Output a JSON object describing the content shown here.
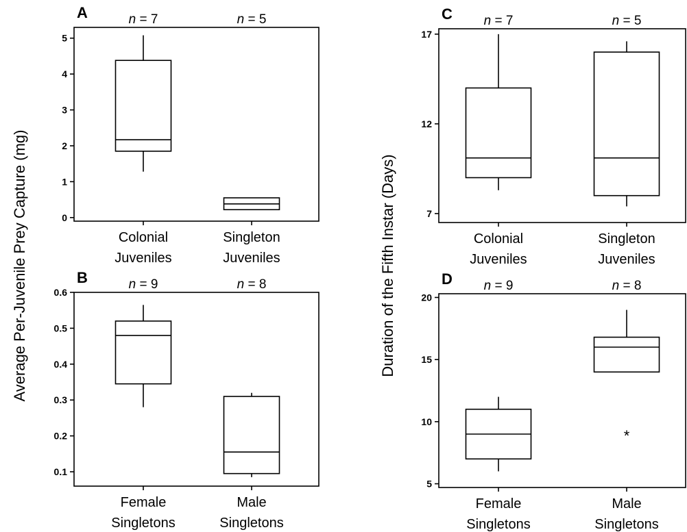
{
  "ylabel_left": "Average Per-Juvenile Prey Capture (mg)",
  "ylabel_right": "Duration of the Fifth Instar (Days)",
  "chart_data": [
    {
      "panel": "A",
      "type": "boxplot",
      "ylim": [
        -0.1,
        5.3
      ],
      "yticks": [
        0,
        1,
        2,
        3,
        4,
        5
      ],
      "categories": [
        {
          "line1": "Colonial",
          "line2": "Juveniles",
          "n": "7",
          "min": 1.28,
          "q1": 1.85,
          "median": 2.17,
          "q3": 4.38,
          "max": 5.08,
          "outliers": []
        },
        {
          "line1": "Singleton",
          "line2": "Juveniles",
          "n": "5",
          "min": 0.22,
          "q1": 0.22,
          "median": 0.38,
          "q3": 0.55,
          "max": 0.55,
          "outliers": []
        }
      ]
    },
    {
      "panel": "B",
      "type": "boxplot",
      "ylim": [
        0.06,
        0.6
      ],
      "yticks": [
        0.1,
        0.2,
        0.3,
        0.4,
        0.5,
        0.6
      ],
      "categories": [
        {
          "line1": "Female",
          "line2": "Singletons",
          "n": "9",
          "min": 0.28,
          "q1": 0.345,
          "median": 0.48,
          "q3": 0.52,
          "max": 0.565,
          "outliers": []
        },
        {
          "line1": "Male",
          "line2": "Singletons",
          "n": "8",
          "min": 0.085,
          "q1": 0.095,
          "median": 0.155,
          "q3": 0.31,
          "max": 0.32,
          "outliers": []
        }
      ]
    },
    {
      "panel": "C",
      "type": "boxplot",
      "ylim": [
        6.5,
        17.3
      ],
      "yticks": [
        7,
        12,
        17
      ],
      "categories": [
        {
          "line1": "Colonial",
          "line2": "Juveniles",
          "n": "7",
          "min": 8.3,
          "q1": 9.0,
          "median": 10.1,
          "q3": 14.0,
          "max": 17.0,
          "outliers": []
        },
        {
          "line1": "Singleton",
          "line2": "Juveniles",
          "n": "5",
          "min": 7.4,
          "q1": 8.0,
          "median": 10.1,
          "q3": 16.0,
          "max": 16.6,
          "outliers": []
        }
      ]
    },
    {
      "panel": "D",
      "type": "boxplot",
      "ylim": [
        4.7,
        20.3
      ],
      "yticks": [
        5,
        10,
        15,
        20
      ],
      "categories": [
        {
          "line1": "Female",
          "line2": "Singletons",
          "n": "9",
          "min": 6.0,
          "q1": 7.0,
          "median": 9.0,
          "q3": 11.0,
          "max": 12.0,
          "outliers": []
        },
        {
          "line1": "Male",
          "line2": "Singletons",
          "n": "8",
          "min": 14.0,
          "q1": 14.0,
          "median": 16.0,
          "q3": 16.8,
          "max": 19.0,
          "outliers": [
            9.0
          ]
        }
      ]
    }
  ]
}
